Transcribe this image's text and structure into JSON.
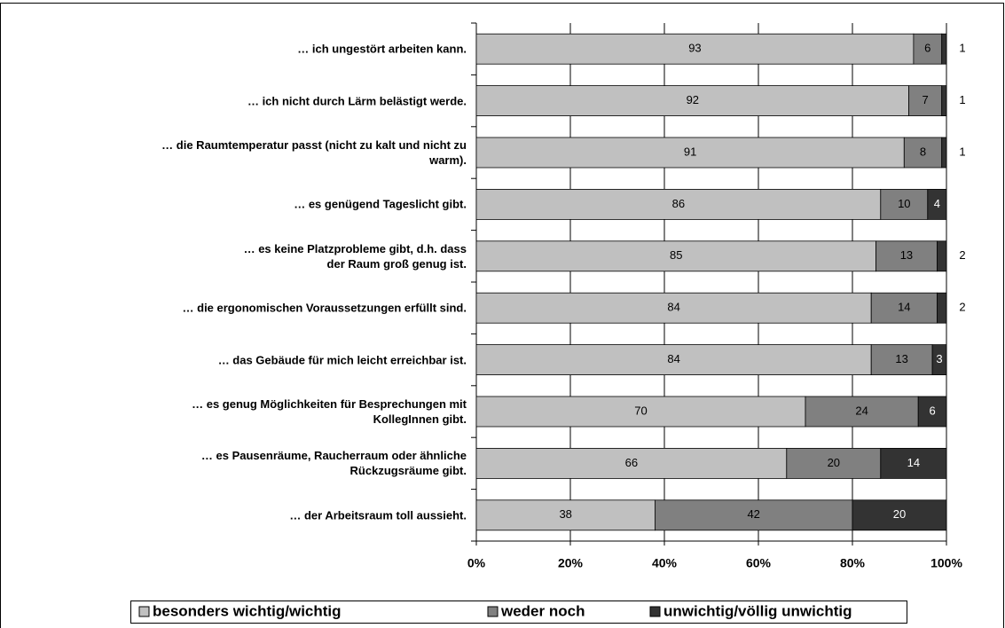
{
  "chart_data": {
    "type": "stacked_barh",
    "categories": [
      "… ich ungestört arbeiten kann.",
      "… ich nicht durch Lärm belästigt werde.",
      "… die Raumtemperatur passt (nicht zu kalt und nicht zu\nwarm).",
      "… es genügend Tageslicht gibt.",
      "… es keine Platzprobleme gibt, d.h. dass\nder Raum groß genug ist.",
      "… die ergonomischen Voraussetzungen erfüllt sind.",
      "… das Gebäude für mich leicht erreichbar ist.",
      "… es genug Möglichkeiten für Besprechungen mit\nKollegInnen gibt.",
      "… es Pausenräume, Raucherraum oder ähnliche\nRückzugsräume gibt.",
      "… der Arbeitsraum toll aussieht."
    ],
    "series": [
      {
        "name": "besonders wichtig/wichtig",
        "color": "#c0c0c0",
        "values": [
          93,
          92,
          91,
          86,
          85,
          84,
          84,
          70,
          66,
          38
        ]
      },
      {
        "name": "weder noch",
        "color": "#808080",
        "values": [
          6,
          7,
          8,
          10,
          13,
          14,
          13,
          24,
          20,
          42
        ]
      },
      {
        "name": "unwichtig/völlig unwichtig",
        "color": "#333333",
        "values": [
          1,
          1,
          1,
          4,
          2,
          2,
          3,
          6,
          14,
          20
        ]
      }
    ],
    "xlim": [
      0,
      100
    ],
    "xticks": [
      {
        "value": 0,
        "label": "0%"
      },
      {
        "value": 20,
        "label": "20%"
      },
      {
        "value": 40,
        "label": "40%"
      },
      {
        "value": 60,
        "label": "60%"
      },
      {
        "value": 80,
        "label": "80%"
      },
      {
        "value": 100,
        "label": "100%"
      }
    ],
    "grid": true,
    "legend": "bottom"
  }
}
